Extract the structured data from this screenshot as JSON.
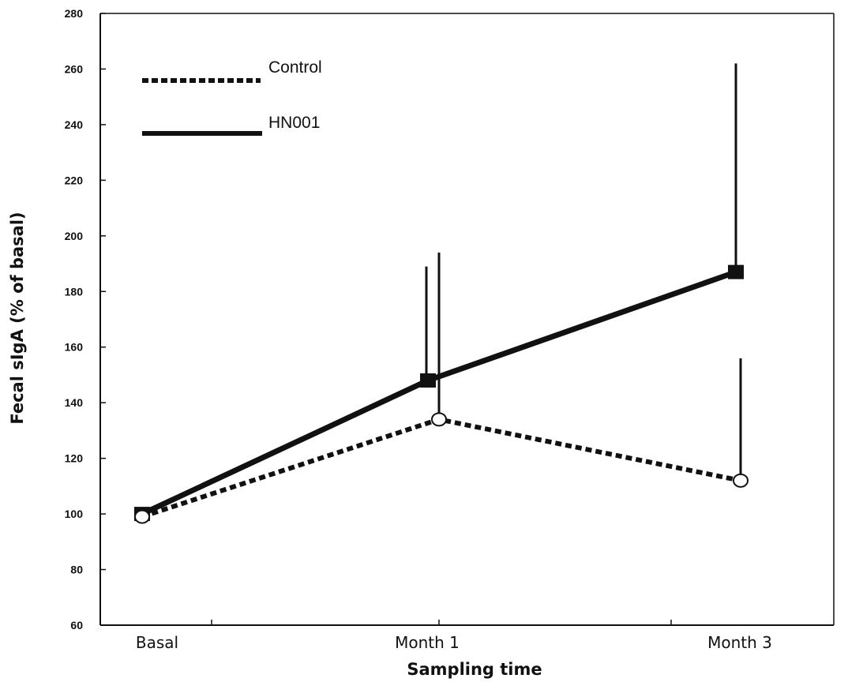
{
  "chart_data": {
    "type": "line",
    "title": "",
    "xlabel": "Sampling time",
    "ylabel": "Fecal  sIgA (% of basal)",
    "categories": [
      "Basal",
      "Month 1",
      "Month 3"
    ],
    "ylim": [
      60,
      280
    ],
    "yticks": [
      "60",
      "80",
      "100",
      "120",
      "140",
      "160",
      "180",
      "200",
      "220",
      "240",
      "260",
      "280"
    ],
    "legend_position": "top-left",
    "grid": false,
    "series": [
      {
        "name": "Control",
        "style": "dotted",
        "marker": "open-circle",
        "values": [
          99,
          134,
          112
        ],
        "error_upper": [
          null,
          194,
          156
        ],
        "color": "#111111"
      },
      {
        "name": "HN001",
        "style": "solid",
        "marker": "filled-square",
        "values": [
          100,
          148,
          187
        ],
        "error_upper": [
          null,
          189,
          262
        ],
        "color": "#111111"
      }
    ]
  }
}
